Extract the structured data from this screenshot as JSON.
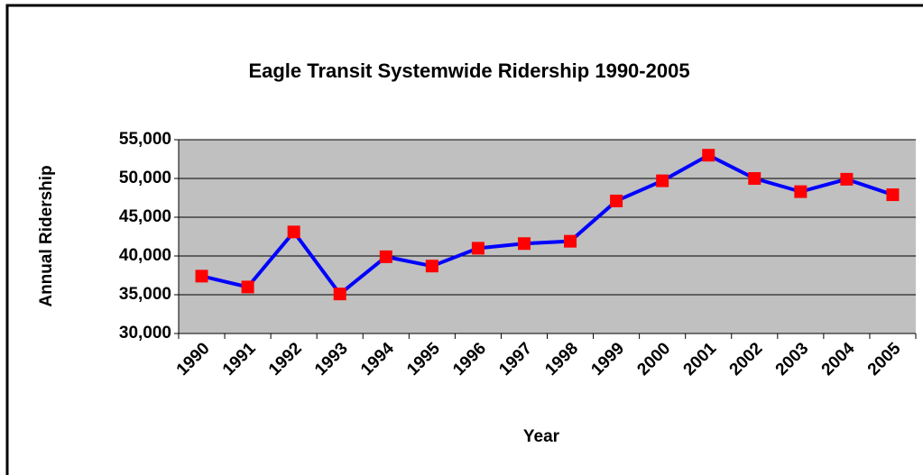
{
  "chart_data": {
    "type": "line",
    "title": "Eagle Transit Systemwide Ridership 1990-2005",
    "x_label": "Year",
    "y_label": "Annual Ridership",
    "categories": [
      "1990",
      "1991",
      "1992",
      "1993",
      "1994",
      "1995",
      "1996",
      "1997",
      "1998",
      "1999",
      "2000",
      "2001",
      "2002",
      "2003",
      "2004",
      "2005"
    ],
    "series": [
      {
        "name": "Ridership",
        "color": "#0000ff",
        "marker_color": "#ff0000",
        "values": [
          37400,
          36000,
          43100,
          35100,
          39900,
          38700,
          41000,
          41600,
          41900,
          47100,
          49700,
          53000,
          50000,
          48300,
          49900,
          47900
        ]
      }
    ],
    "ylim": [
      30000,
      55000
    ],
    "yticks": [
      {
        "value": 30000,
        "label": "30,000"
      },
      {
        "value": 35000,
        "label": "35,000"
      },
      {
        "value": 40000,
        "label": "40,000"
      },
      {
        "value": 45000,
        "label": "45,000"
      },
      {
        "value": 50000,
        "label": "50,000"
      },
      {
        "value": 55000,
        "label": "55,000"
      }
    ],
    "grid": true
  }
}
